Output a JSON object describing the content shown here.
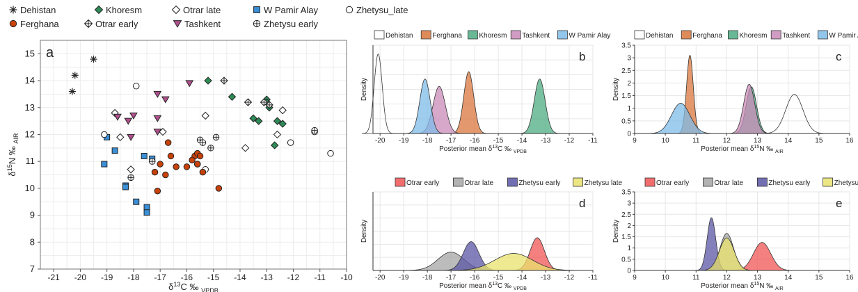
{
  "colors": {
    "dehistan": "#ffffff",
    "ferghana": "#d9773c",
    "khoresm": "#4eac82",
    "tashkent": "#c98bb8",
    "wpamir": "#7fbce8",
    "otrar_early": "#f05555",
    "otrar_late": "#a6a6a6",
    "zhetysu_early": "#5b56a6",
    "zhetysu_late": "#e9e36e",
    "ferghana_pt": "#c8420a",
    "khoresm_pt": "#2e8b57",
    "tashkent_pt": "#b0508c",
    "wpamir_pt": "#3b8fd6"
  },
  "chart_data": [
    {
      "id": "a",
      "type": "scatter",
      "panel_label": "a",
      "xlabel": "δ13C ‰ VPDB",
      "ylabel": "δ15N ‰ AIR",
      "xlim": [
        -21.5,
        -10
      ],
      "ylim": [
        7,
        15.5
      ],
      "xticks": [
        -21,
        -20,
        -19,
        -18,
        -17,
        -16,
        -15,
        -14,
        -13,
        -12,
        -11,
        -10
      ],
      "yticks": [
        7,
        8,
        9,
        10,
        11,
        12,
        13,
        14,
        15
      ],
      "grid": true,
      "legend_position": "top",
      "series": [
        {
          "name": "Dehistan",
          "marker": "asterisk",
          "points": [
            [
              -20.2,
              14.2
            ],
            [
              -19.5,
              14.8
            ],
            [
              -20.3,
              13.6
            ]
          ]
        },
        {
          "name": "Khoresm",
          "marker": "diamond-filled",
          "points": [
            [
              -15.2,
              14.0
            ],
            [
              -14.3,
              13.4
            ],
            [
              -13.0,
              13.3
            ],
            [
              -13.0,
              13.2
            ],
            [
              -12.9,
              13.0
            ],
            [
              -13.5,
              12.6
            ],
            [
              -13.3,
              12.5
            ],
            [
              -12.6,
              12.5
            ],
            [
              -12.4,
              12.4
            ],
            [
              -12.7,
              11.6
            ]
          ]
        },
        {
          "name": "Otrar late",
          "marker": "diamond-open",
          "points": [
            [
              -18.7,
              12.8
            ],
            [
              -16.9,
              12.1
            ],
            [
              -18.5,
              11.9
            ],
            [
              -18.1,
              10.7
            ],
            [
              -15.3,
              12.7
            ],
            [
              -13.8,
              11.5
            ],
            [
              -12.4,
              12.9
            ],
            [
              -12.6,
              12.0
            ]
          ]
        },
        {
          "name": "W Pamir Alay",
          "marker": "square",
          "points": [
            [
              -19.0,
              11.9
            ],
            [
              -18.7,
              11.4
            ],
            [
              -19.1,
              10.9
            ],
            [
              -17.6,
              11.2
            ],
            [
              -17.3,
              11.1
            ],
            [
              -18.3,
              10.1
            ],
            [
              -18.3,
              10.05
            ],
            [
              -17.9,
              9.5
            ],
            [
              -17.5,
              9.3
            ],
            [
              -17.5,
              9.1
            ]
          ]
        },
        {
          "name": "Zhetysu_late",
          "marker": "circle-open",
          "points": [
            [
              -17.9,
              13.8
            ],
            [
              -19.1,
              12.0
            ],
            [
              -15.3,
              10.7
            ],
            [
              -12.1,
              11.7
            ],
            [
              -11.2,
              12.1
            ],
            [
              -10.6,
              11.3
            ]
          ]
        },
        {
          "name": "Ferghana",
          "marker": "circle-filled",
          "points": [
            [
              -16.7,
              11.7
            ],
            [
              -16.6,
              11.2
            ],
            [
              -17.0,
              10.9
            ],
            [
              -16.4,
              10.8
            ],
            [
              -16.0,
              10.8
            ],
            [
              -15.7,
              11.2
            ],
            [
              -15.6,
              11.3
            ],
            [
              -15.5,
              11.2
            ],
            [
              -15.8,
              11.05
            ],
            [
              -15.6,
              10.9
            ],
            [
              -15.6,
              10.9
            ],
            [
              -17.2,
              10.6
            ],
            [
              -16.8,
              10.5
            ],
            [
              -15.4,
              10.6
            ],
            [
              -17.1,
              9.9
            ],
            [
              -14.8,
              10.0
            ]
          ]
        },
        {
          "name": "Otrar early",
          "marker": "diamond-cross",
          "points": [
            [
              -14.6,
              14.0
            ],
            [
              -13.7,
              13.2
            ],
            [
              -13.1,
              13.2
            ],
            [
              -12.9,
              13.1
            ]
          ]
        },
        {
          "name": "Tashkent",
          "marker": "triangle-down",
          "points": [
            [
              -17.1,
              13.5
            ],
            [
              -15.9,
              13.9
            ],
            [
              -16.8,
              13.3
            ],
            [
              -18.0,
              12.7
            ],
            [
              -18.6,
              12.65
            ],
            [
              -18.2,
              12.5
            ],
            [
              -17.1,
              12.6
            ],
            [
              -17.1,
              12.1
            ],
            [
              -18.1,
              11.9
            ]
          ]
        },
        {
          "name": "Zhetysu early",
          "marker": "circle-cross",
          "points": [
            [
              -18.1,
              10.4
            ],
            [
              -17.3,
              11.0
            ],
            [
              -15.5,
              11.8
            ],
            [
              -15.4,
              11.7
            ],
            [
              -15.1,
              11.5
            ],
            [
              -14.9,
              11.9
            ],
            [
              -11.2,
              12.15
            ]
          ]
        }
      ]
    },
    {
      "id": "b",
      "type": "area",
      "panel_label": "b",
      "xlabel": "Posterior mean δ13C ‰ VPDB",
      "ylabel": "Density",
      "xlim": [
        -20.3,
        -11
      ],
      "ylim": [
        0,
        3
      ],
      "xticks": [
        -20,
        -19,
        -18,
        -17,
        -16,
        -15,
        -14,
        -13,
        -12,
        -11
      ],
      "legend_position": "top",
      "series": [
        {
          "name": "Dehistan",
          "color_key": "dehistan",
          "mean": -20.08,
          "sd": 0.17,
          "peak": 2.7
        },
        {
          "name": "Ferghana",
          "color_key": "ferghana",
          "mean": -16.25,
          "sd": 0.21,
          "peak": 2.1
        },
        {
          "name": "Khoresm",
          "color_key": "khoresm",
          "mean": -13.25,
          "sd": 0.23,
          "peak": 1.85
        },
        {
          "name": "Tashkent",
          "color_key": "tashkent",
          "mean": -17.5,
          "sd": 0.26,
          "peak": 1.6
        },
        {
          "name": "W Pamir Alay",
          "color_key": "wpamir",
          "mean": -18.1,
          "sd": 0.22,
          "peak": 1.85
        }
      ]
    },
    {
      "id": "c",
      "type": "area",
      "panel_label": "c",
      "xlabel": "Posterior mean δ15N ‰ AIR",
      "ylabel": "Density",
      "xlim": [
        9,
        16
      ],
      "ylim": [
        0,
        3.5
      ],
      "xticks": [
        9,
        10,
        11,
        12,
        13,
        14,
        15,
        16
      ],
      "yticks": [
        0,
        0.5,
        1,
        1.5,
        2,
        2.5,
        3,
        3.5
      ],
      "legend_position": "top",
      "series": [
        {
          "name": "Dehistan",
          "color_key": "dehistan",
          "mean": 14.2,
          "sd": 0.28,
          "peak": 1.55
        },
        {
          "name": "Ferghana",
          "color_key": "ferghana",
          "mean": 10.8,
          "sd": 0.11,
          "peak": 3.1
        },
        {
          "name": "Khoresm",
          "color_key": "khoresm",
          "mean": 12.8,
          "sd": 0.17,
          "peak": 1.85
        },
        {
          "name": "Tashkent",
          "color_key": "tashkent",
          "mean": 12.73,
          "sd": 0.18,
          "peak": 1.95
        },
        {
          "name": "W Pamir Alay",
          "color_key": "wpamir",
          "mean": 10.5,
          "sd": 0.3,
          "peak": 1.2
        }
      ]
    },
    {
      "id": "d",
      "type": "area",
      "panel_label": "d",
      "xlabel": "Posterior mean δ13C ‰ VPDB",
      "ylabel": "Density",
      "xlim": [
        -20.3,
        -11
      ],
      "ylim": [
        0,
        3
      ],
      "xticks": [
        -20,
        -19,
        -18,
        -17,
        -16,
        -15,
        -14,
        -13,
        -12,
        -11
      ],
      "legend_position": "top",
      "series": [
        {
          "name": "Otrar early",
          "color_key": "otrar_early",
          "mean": -13.35,
          "sd": 0.3,
          "peak": 1.25
        },
        {
          "name": "Otrar late",
          "color_key": "otrar_late",
          "mean": -17.0,
          "sd": 0.55,
          "peak": 0.7
        },
        {
          "name": "Zhetysu early",
          "color_key": "zhetysu_early",
          "mean": -16.15,
          "sd": 0.33,
          "peak": 1.1
        },
        {
          "name": "Zhetysu late",
          "color_key": "zhetysu_late",
          "mean": -14.35,
          "sd": 0.8,
          "peak": 0.65
        }
      ]
    },
    {
      "id": "e",
      "type": "area",
      "panel_label": "e",
      "xlabel": "Posterior mean δ15N ‰ AIR",
      "ylabel": "Density",
      "xlim": [
        9,
        16
      ],
      "ylim": [
        0,
        3.5
      ],
      "xticks": [
        9,
        10,
        11,
        12,
        13,
        14,
        15,
        16
      ],
      "yticks": [
        0,
        0.5,
        1,
        1.5,
        2,
        2.5,
        3,
        3.5
      ],
      "legend_position": "top",
      "series": [
        {
          "name": "Otrar early",
          "color_key": "otrar_early",
          "mean": 13.15,
          "sd": 0.28,
          "peak": 1.25
        },
        {
          "name": "Otrar late",
          "color_key": "otrar_late",
          "mean": 12.0,
          "sd": 0.22,
          "peak": 1.65
        },
        {
          "name": "Zhetysu early",
          "color_key": "zhetysu_early",
          "mean": 11.5,
          "sd": 0.14,
          "peak": 2.35
        },
        {
          "name": "Zhetysu late",
          "color_key": "zhetysu_late",
          "mean": 12.0,
          "sd": 0.24,
          "peak": 1.45
        }
      ]
    }
  ]
}
